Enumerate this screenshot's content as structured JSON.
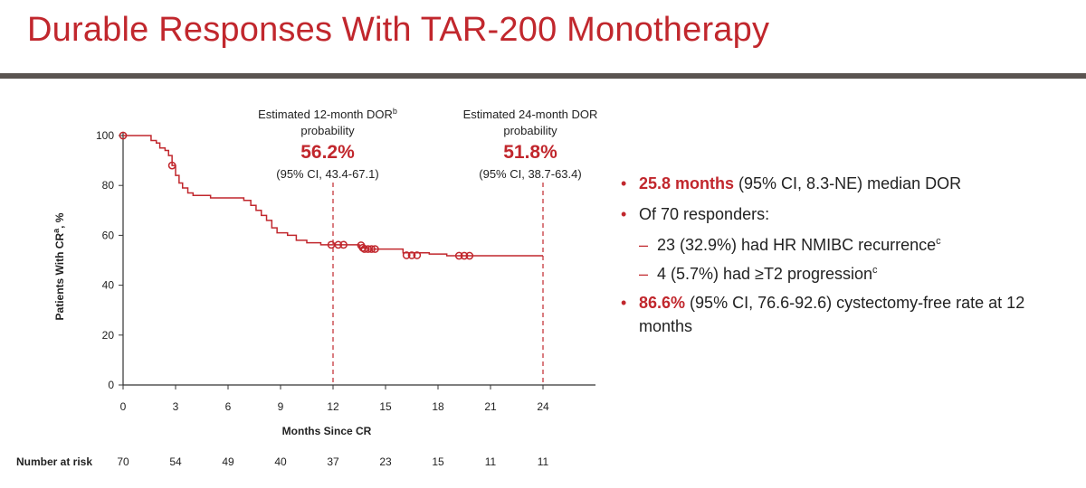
{
  "header": {
    "title": "Durable Responses With TAR-200 Monotherapy"
  },
  "annotations": {
    "m12": {
      "label_line1": "Estimated 12-month DOR",
      "label_sup": "b",
      "label_line2": "probability",
      "value": "56.2%",
      "ci": "(95% CI, 43.4-67.1)",
      "x_month": 12
    },
    "m24": {
      "label_line1": "Estimated 24-month DOR",
      "label_line2": "probability",
      "value": "51.8%",
      "ci": "(95% CI, 38.7-63.4)",
      "x_month": 24
    }
  },
  "bullets": {
    "b1": {
      "highlight": "25.8 months",
      "rest": " (95% CI, 8.3-NE) median DOR"
    },
    "b2": {
      "text": "Of 70 responders:"
    },
    "s1": {
      "text": "23 (32.9%) had HR NMIBC recurrence",
      "sup": "c"
    },
    "s2": {
      "text": "4 (5.7%) had ≥T2 progression",
      "sup": "c"
    },
    "b3": {
      "highlight": "86.6%",
      "rest": " (95% CI, 76.6-92.6) cystectomy-free rate at 12 months"
    }
  },
  "risk_table": {
    "label": "Number at risk",
    "months": [
      0,
      3,
      6,
      9,
      12,
      15,
      18,
      21,
      24
    ],
    "values": [
      "70",
      "54",
      "49",
      "40",
      "37",
      "23",
      "15",
      "11",
      "11"
    ]
  },
  "chart_data": {
    "type": "line",
    "xlabel": "Months Since CR",
    "ylabel": "Patients With CR",
    "ylabel_sup": "a",
    "ylabel_suffix": ", %",
    "xlim": [
      0,
      27
    ],
    "ylim": [
      0,
      100
    ],
    "xticks": [
      0,
      3,
      6,
      9,
      12,
      15,
      18,
      21,
      24
    ],
    "yticks": [
      0,
      20,
      40,
      60,
      80,
      100
    ],
    "color": "#c1272d",
    "series": [
      {
        "step": [
          [
            0,
            100
          ],
          [
            1.3,
            100
          ],
          [
            1.6,
            98
          ],
          [
            1.9,
            97
          ],
          [
            2.1,
            95
          ],
          [
            2.4,
            94
          ],
          [
            2.6,
            92
          ],
          [
            2.8,
            88
          ],
          [
            3.0,
            84
          ],
          [
            3.2,
            81
          ],
          [
            3.4,
            79
          ],
          [
            3.7,
            77
          ],
          [
            4.0,
            76
          ],
          [
            5.0,
            75
          ],
          [
            6.9,
            74
          ],
          [
            7.3,
            72
          ],
          [
            7.6,
            70
          ],
          [
            7.9,
            68
          ],
          [
            8.2,
            66
          ],
          [
            8.5,
            63
          ],
          [
            8.8,
            61
          ],
          [
            9.4,
            60
          ],
          [
            9.9,
            58
          ],
          [
            10.5,
            57
          ],
          [
            11.3,
            56.2
          ],
          [
            13.5,
            55
          ],
          [
            14.0,
            54.5
          ],
          [
            16.0,
            53
          ],
          [
            17.5,
            52.5
          ],
          [
            18.5,
            51.8
          ],
          [
            24.0,
            51.8
          ]
        ],
        "censored": [
          [
            0,
            100
          ],
          [
            2.8,
            88
          ],
          [
            11.9,
            56.2
          ],
          [
            12.3,
            56.2
          ],
          [
            12.6,
            56.2
          ],
          [
            13.6,
            56
          ],
          [
            13.7,
            55
          ],
          [
            13.8,
            54.5
          ],
          [
            14.0,
            54.5
          ],
          [
            14.2,
            54.5
          ],
          [
            14.4,
            54.5
          ],
          [
            16.2,
            52
          ],
          [
            16.5,
            52
          ],
          [
            16.8,
            52
          ],
          [
            19.2,
            51.8
          ],
          [
            19.5,
            51.8
          ],
          [
            19.8,
            51.8
          ]
        ]
      }
    ]
  }
}
